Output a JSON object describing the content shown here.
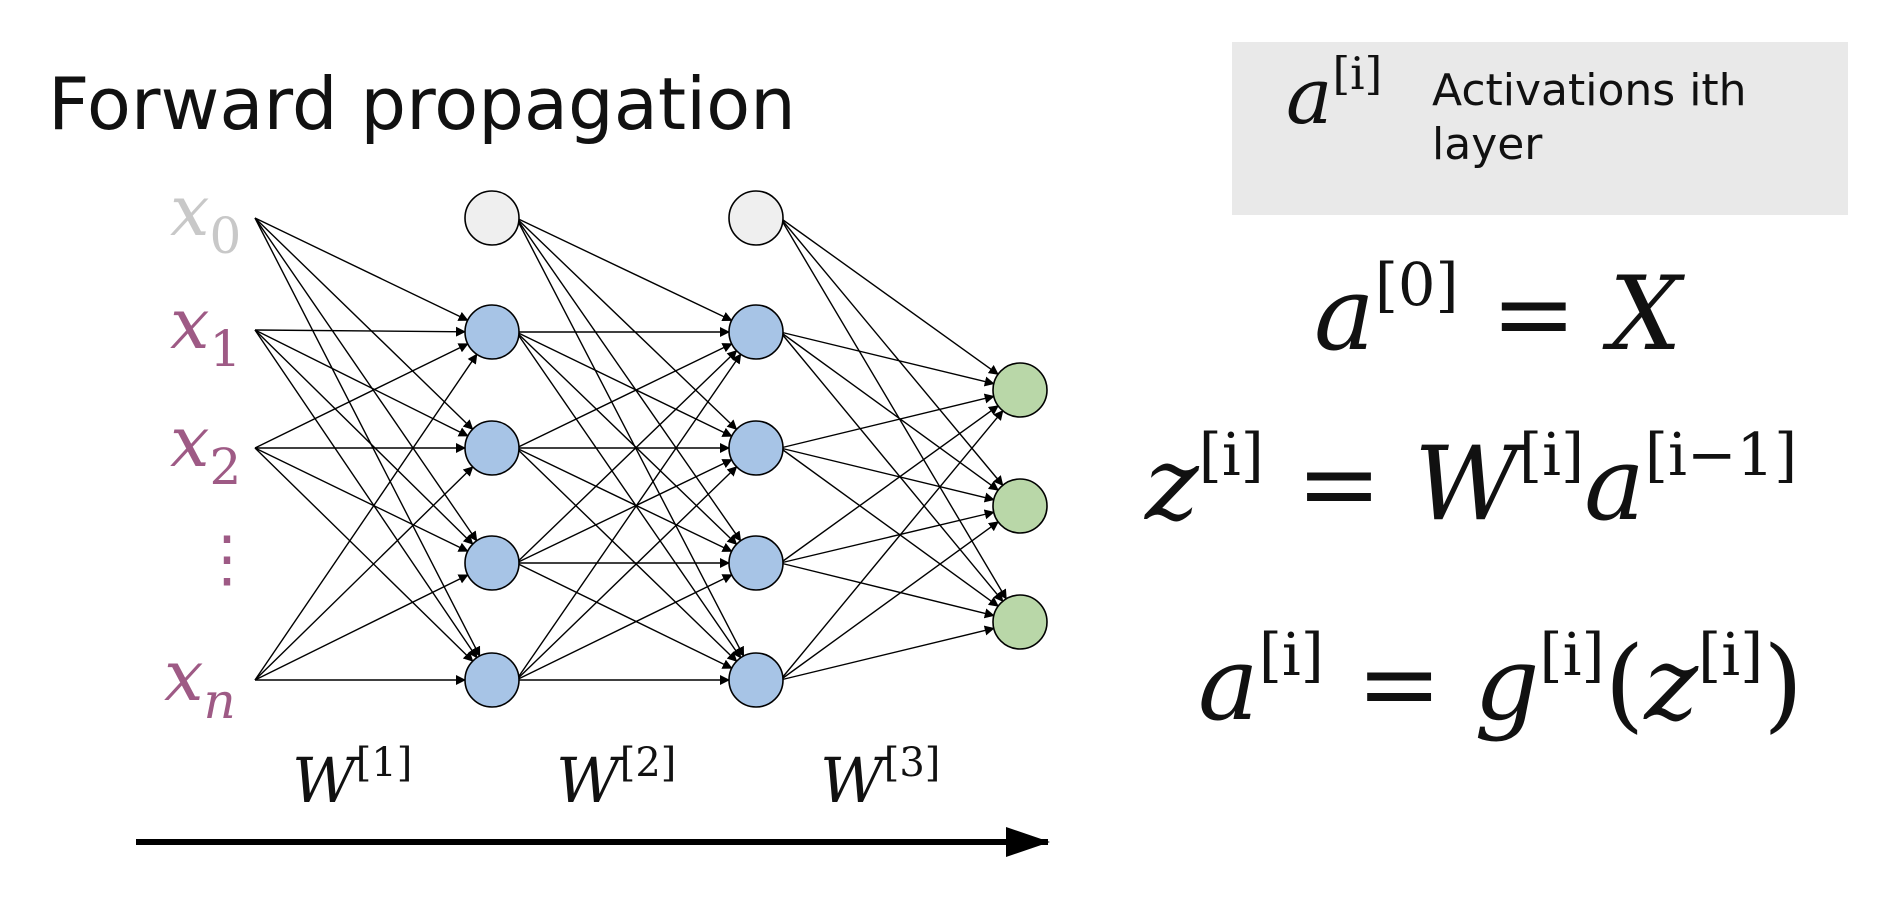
{
  "title": "Forward propagation",
  "legend": {
    "symbol": "a",
    "symbol_sup": "[i]",
    "text_line1": "Activations ith",
    "text_line2": "layer"
  },
  "equations": {
    "eq1": {
      "lhs": "a",
      "lhs_sup": "[0]",
      "eq": "=",
      "rhs": "X"
    },
    "eq2": {
      "lhs": "z",
      "lhs_sup": "[i]",
      "eq": "=",
      "w": "W",
      "w_sup": "[i]",
      "a": "a",
      "a_sup": "[i−1]"
    },
    "eq3": {
      "lhs": "a",
      "lhs_sup": "[i]",
      "eq": "=",
      "g": "g",
      "g_sup": "[i]",
      "open": "(",
      "z": "z",
      "z_sup": "[i]",
      "close": ")"
    }
  },
  "inputs": [
    {
      "var": "x",
      "sub": "0"
    },
    {
      "var": "x",
      "sub": "1"
    },
    {
      "var": "x",
      "sub": "2"
    },
    {
      "var": "⋮",
      "sub": ""
    },
    {
      "var": "x",
      "sub": "n"
    }
  ],
  "weights": [
    {
      "var": "W",
      "sup": "[1]"
    },
    {
      "var": "W",
      "sup": "[2]"
    },
    {
      "var": "W",
      "sup": "[3]"
    }
  ],
  "colors": {
    "bias_label": "#c8c8c8",
    "input_label": "#9e5a85",
    "bias_node": "#efefef",
    "hidden_node": "#a7c4e6",
    "output_node": "#b9d7a8",
    "legend_bg": "#e9e9e9"
  }
}
